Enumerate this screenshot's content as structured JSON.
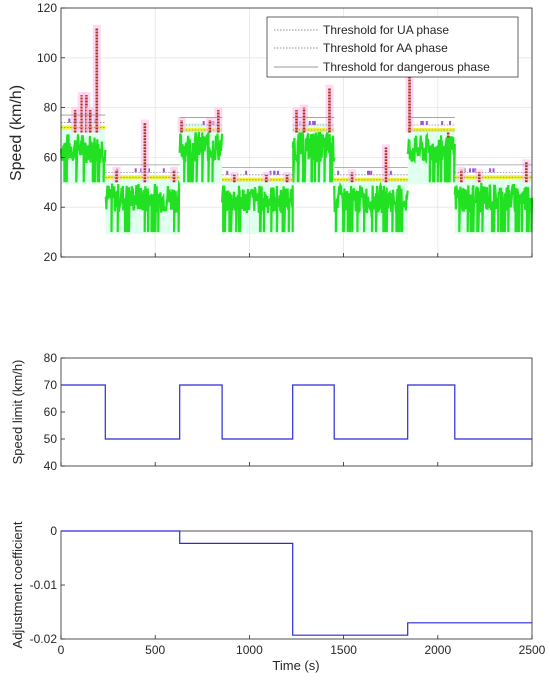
{
  "colors": {
    "grid": "#e6e6e6",
    "axis": "#262626",
    "threshold_ua": "#8c8c8c",
    "threshold_aa": "#8c8c8c",
    "threshold_dangerous": "#9a9a9a",
    "series_line": "#2b2bd6",
    "safe": "#22e022",
    "safe_halo": "#c8ffe0",
    "ua": "#eeee20",
    "aa": "#a050e0",
    "dangerous": "#b03020",
    "dangerous_halo": "#ffc8f0"
  },
  "chart_data": [
    {
      "type": "line",
      "title": "",
      "xlabel": "",
      "ylabel": "Speed (km/h)",
      "xlim": [
        0,
        2500
      ],
      "ylim": [
        20,
        120
      ],
      "xticks": [
        0,
        500,
        1000,
        1500,
        2000,
        2500
      ],
      "yticks": [
        20,
        40,
        60,
        80,
        100,
        120
      ],
      "xtick_labels": [],
      "ytick_labels": [
        "20",
        "40",
        "60",
        "80",
        "100",
        "120"
      ],
      "grid": true,
      "legend_position": "top-right",
      "legend": [
        {
          "name": "Threshold for UA phase",
          "style": "dotted"
        },
        {
          "name": "Threshold for AA phase",
          "style": "dotted"
        },
        {
          "name": "Threshold for dangerous phase",
          "style": "solid"
        }
      ],
      "segments": [
        {
          "x": [
            0,
            235
          ],
          "limit": 70,
          "ua": 72,
          "aa": 74,
          "dangerous": 77
        },
        {
          "x": [
            235,
            630
          ],
          "limit": 50,
          "ua": 52,
          "aa": 54,
          "dangerous": 57
        },
        {
          "x": [
            630,
            855
          ],
          "limit": 70,
          "ua": 71,
          "aa": 73,
          "dangerous": 76
        },
        {
          "x": [
            855,
            1230
          ],
          "limit": 50,
          "ua": 51,
          "aa": 53,
          "dangerous": 56
        },
        {
          "x": [
            1230,
            1450
          ],
          "limit": 70,
          "ua": 71,
          "aa": 73,
          "dangerous": 76
        },
        {
          "x": [
            1450,
            1840
          ],
          "limit": 50,
          "ua": 51,
          "aa": 53,
          "dangerous": 56
        },
        {
          "x": [
            1840,
            2090
          ],
          "limit": 70,
          "ua": 71,
          "aa": 73,
          "dangerous": 76
        },
        {
          "x": [
            2090,
            2500
          ],
          "limit": 50,
          "ua": 52,
          "aa": 54,
          "dangerous": 57
        }
      ],
      "speed_profile": {
        "ranges": [
          {
            "x": [
              0,
              235
            ],
            "min": 50,
            "max": 72
          },
          {
            "x": [
              235,
              630
            ],
            "min": 30,
            "max": 52
          },
          {
            "x": [
              630,
              855
            ],
            "min": 50,
            "max": 73
          },
          {
            "x": [
              855,
              1230
            ],
            "min": 30,
            "max": 51
          },
          {
            "x": [
              1230,
              1450
            ],
            "min": 50,
            "max": 73
          },
          {
            "x": [
              1450,
              1840
            ],
            "min": 30,
            "max": 51
          },
          {
            "x": [
              1840,
              2090
            ],
            "min": 50,
            "max": 71
          },
          {
            "x": [
              2090,
              2500
            ],
            "min": 30,
            "max": 52
          }
        ],
        "peaks": [
          {
            "x": 75,
            "value": 79
          },
          {
            "x": 110,
            "value": 85
          },
          {
            "x": 135,
            "value": 85
          },
          {
            "x": 155,
            "value": 79
          },
          {
            "x": 190,
            "value": 112
          },
          {
            "x": 295,
            "value": 55
          },
          {
            "x": 445,
            "value": 74
          },
          {
            "x": 600,
            "value": 55
          },
          {
            "x": 640,
            "value": 75
          },
          {
            "x": 790,
            "value": 75
          },
          {
            "x": 835,
            "value": 79
          },
          {
            "x": 920,
            "value": 53
          },
          {
            "x": 1090,
            "value": 53
          },
          {
            "x": 1200,
            "value": 53
          },
          {
            "x": 1250,
            "value": 79
          },
          {
            "x": 1290,
            "value": 80
          },
          {
            "x": 1425,
            "value": 88
          },
          {
            "x": 1545,
            "value": 54
          },
          {
            "x": 1725,
            "value": 64
          },
          {
            "x": 1850,
            "value": 93
          },
          {
            "x": 2055,
            "value": 68
          },
          {
            "x": 2125,
            "value": 55
          },
          {
            "x": 2220,
            "value": 54
          },
          {
            "x": 2470,
            "value": 58
          }
        ]
      }
    },
    {
      "type": "line",
      "xlabel": "",
      "ylabel": "Speed limit (km/h)",
      "xlim": [
        0,
        2500
      ],
      "ylim": [
        40,
        80
      ],
      "xticks": [
        0,
        500,
        1000,
        1500,
        2000,
        2500
      ],
      "yticks": [
        40,
        50,
        60,
        70,
        80
      ],
      "ytick_labels": [
        "40",
        "50",
        "60",
        "70",
        "80"
      ],
      "grid": false,
      "series": [
        {
          "x": [
            0,
            235,
            235,
            630,
            630,
            855,
            855,
            1230,
            1230,
            1450,
            1450,
            1840,
            1840,
            2090,
            2090,
            2500
          ],
          "values": [
            70,
            70,
            50,
            50,
            70,
            70,
            50,
            50,
            70,
            70,
            50,
            50,
            70,
            70,
            50,
            50
          ]
        }
      ]
    },
    {
      "type": "line",
      "xlabel": "Time (s)",
      "ylabel": "Adjustment coefficient",
      "xlim": [
        0,
        2500
      ],
      "ylim": [
        -0.02,
        0
      ],
      "xticks": [
        0,
        500,
        1000,
        1500,
        2000,
        2500
      ],
      "xtick_labels": [
        "0",
        "500",
        "1000",
        "1500",
        "2000",
        "2500"
      ],
      "yticks": [
        0,
        -0.01,
        -0.02
      ],
      "ytick_labels": [
        "0",
        "-0.01",
        "-0.02"
      ],
      "grid": false,
      "series": [
        {
          "x": [
            0,
            630,
            630,
            1230,
            1230,
            1840,
            1840,
            2500
          ],
          "values": [
            0,
            0,
            -0.0023,
            -0.0023,
            -0.0193,
            -0.0193,
            -0.017,
            -0.017
          ]
        }
      ]
    }
  ]
}
